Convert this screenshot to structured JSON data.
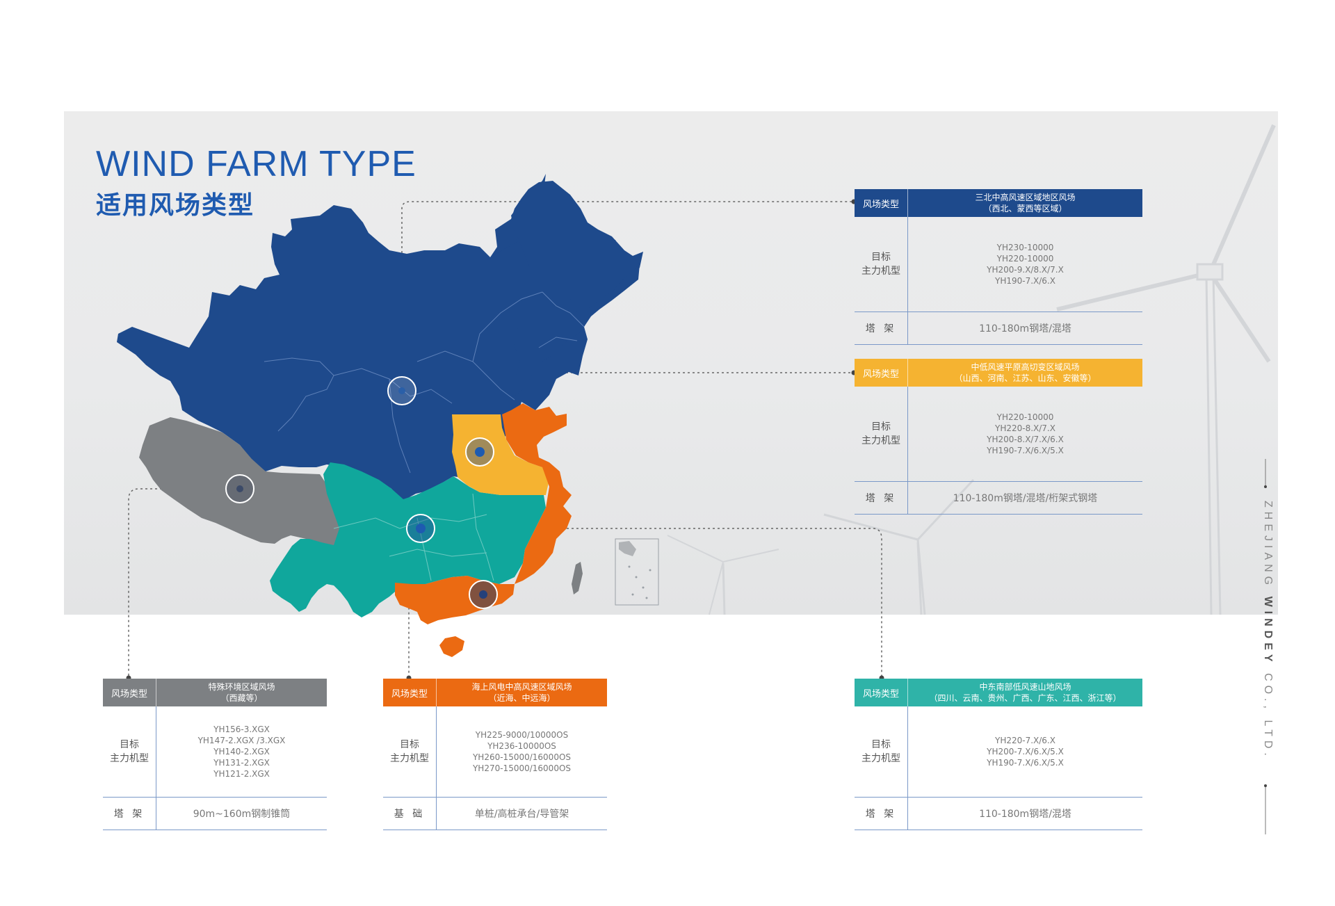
{
  "title": {
    "en": "WIND FARM TYPE",
    "cn": "适用风场类型"
  },
  "colors": {
    "blue": "#1e4a8c",
    "yellow": "#f5b331",
    "orange": "#eb6a12",
    "teal": "#10a79c",
    "gray": "#7d8083",
    "title": "#1f5bb0"
  },
  "side_text": {
    "a": "ZHEJIANG",
    "b": "WINDEY",
    "c": "CO., LTD."
  },
  "cards": [
    {
      "id": "north",
      "type_label": "风场类型",
      "desc1": "三北中高风速区域地区风场",
      "desc2": "（西北、蒙西等区域）",
      "model_label_1": "目标",
      "model_label_2": "主力机型",
      "models": [
        "YH230-10000",
        "YH220-10000",
        "YH200-9.X/8.X/7.X",
        "YH190-7.X/6.X"
      ],
      "tower_label": "塔  架",
      "tower": "110-180m钢塔/混塔",
      "color": "#1e4a8c"
    },
    {
      "id": "central",
      "type_label": "风场类型",
      "desc1": "中低风速平原高切变区域风场",
      "desc2": "（山西、河南、江苏、山东、安徽等）",
      "model_label_1": "目标",
      "model_label_2": "主力机型",
      "models": [
        "YH220-10000",
        "YH220-8.X/7.X",
        "YH200-8.X/7.X/6.X",
        "YH190-7.X/6.X/5.X"
      ],
      "tower_label": "塔  架",
      "tower": "110-180m钢塔/混塔/桁架式钢塔",
      "color": "#f5b331"
    },
    {
      "id": "tibet",
      "type_label": "风场类型",
      "desc1": "特殊环境区域风场",
      "desc2": "（西藏等）",
      "model_label_1": "目标",
      "model_label_2": "主力机型",
      "models": [
        "YH156-3.XGX",
        "YH147-2.XGX /3.XGX",
        "YH140-2.XGX",
        "YH131-2.XGX",
        "YH121-2.XGX"
      ],
      "tower_label": "塔  架",
      "tower": "90m~160m钢制锥筒",
      "color": "#7d8083"
    },
    {
      "id": "offshore",
      "type_label": "风场类型",
      "desc1": "海上风电中高风速区域风场",
      "desc2": "（近海、中远海）",
      "model_label_1": "目标",
      "model_label_2": "主力机型",
      "models": [
        "YH225-9000/10000OS",
        "YH236-10000OS",
        "YH260-15000/16000OS",
        "YH270-15000/16000OS"
      ],
      "tower_label": "基  础",
      "tower": "单桩/高桩承台/导管架",
      "color": "#eb6a12"
    },
    {
      "id": "south",
      "type_label": "风场类型",
      "desc1": "中东南部低风速山地风场",
      "desc2": "（四川、云南、贵州、广西、广东、江西、浙江等）",
      "model_label_1": "目标",
      "model_label_2": "主力机型",
      "models": [
        "YH220-7.X/6.X",
        "YH200-7.X/6.X/5.X",
        "YH190-7.X/6.X/5.X"
      ],
      "tower_label": "塔  架",
      "tower": "110-180m钢塔/混塔",
      "color": "#2fb3a8"
    }
  ]
}
